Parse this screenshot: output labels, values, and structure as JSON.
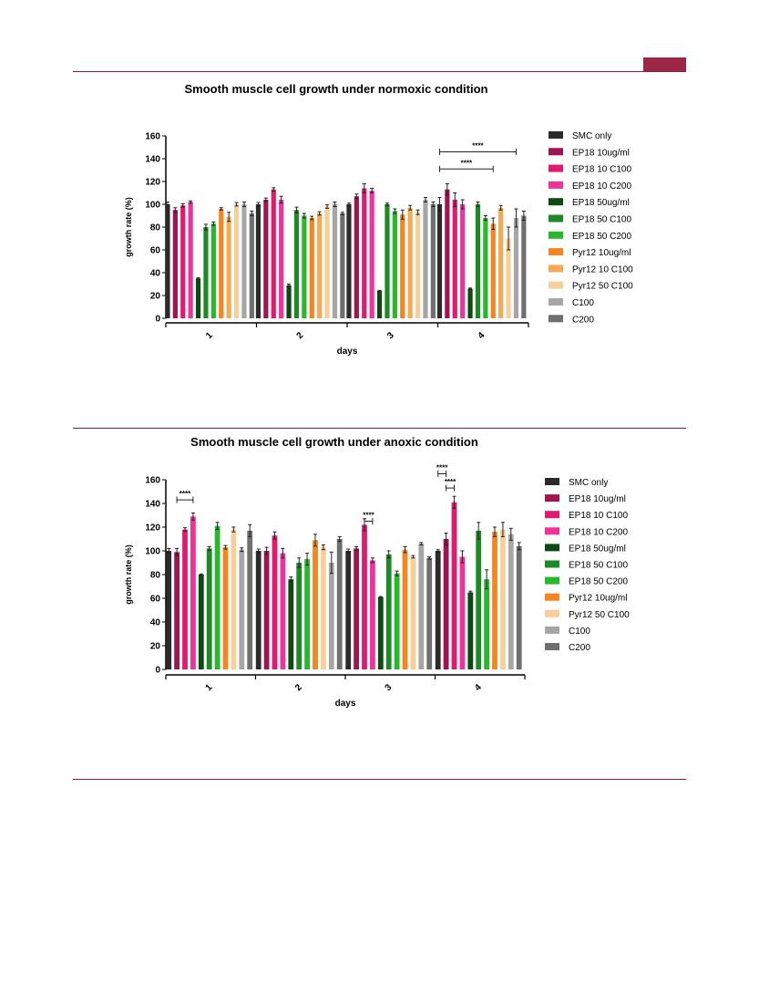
{
  "page": {
    "accent": "#9d2545"
  },
  "chart_data": [
    {
      "type": "bar",
      "title": "Smooth muscle cell growth under normoxic condition",
      "xlabel": "days",
      "ylabel": "growth rate (%)",
      "ylim": [
        0,
        160
      ],
      "yticks": [
        0,
        20,
        40,
        60,
        80,
        100,
        120,
        140,
        160
      ],
      "categories": [
        "1",
        "2",
        "3",
        "4"
      ],
      "legend_position": "right",
      "series": [
        {
          "name": "SMC only",
          "color": "#2b2b2b",
          "values": [
            100,
            100,
            100,
            100
          ],
          "errors": [
            2,
            1.5,
            1,
            6
          ]
        },
        {
          "name": "EP18 10ug/ml",
          "color": "#a0154d",
          "values": [
            95,
            104,
            107,
            113
          ],
          "errors": [
            2,
            1.5,
            2,
            5
          ]
        },
        {
          "name": "EP18 10 C100",
          "color": "#e01a6e",
          "values": [
            99,
            113,
            114,
            104
          ],
          "errors": [
            1.5,
            1.5,
            4,
            6
          ]
        },
        {
          "name": "EP18 10 C200",
          "color": "#f0329a",
          "values": [
            102,
            104,
            112,
            100
          ],
          "errors": [
            1,
            3,
            2,
            4
          ]
        },
        {
          "name": "EP18 50ug/ml",
          "color": "#0d4a12",
          "values": [
            35,
            29,
            24,
            26
          ],
          "errors": [
            0.5,
            1,
            0.5,
            0.5
          ]
        },
        {
          "name": "EP18 50 C100",
          "color": "#1d8a24",
          "values": [
            80,
            95,
            100,
            100
          ],
          "errors": [
            2.5,
            2.5,
            1,
            2
          ]
        },
        {
          "name": "EP18 50 C200",
          "color": "#28b82e",
          "values": [
            83,
            90,
            94,
            88
          ],
          "errors": [
            1.5,
            2,
            2,
            2
          ]
        },
        {
          "name": "Pyr12 10ug/ml",
          "color": "#f5861f",
          "values": [
            96,
            88,
            91,
            83
          ],
          "errors": [
            1,
            1.5,
            4,
            5
          ]
        },
        {
          "name": "Pyr12 10 C100",
          "color": "#f6aa55",
          "values": [
            89,
            92,
            97,
            97
          ],
          "errors": [
            4,
            1.5,
            2,
            2
          ]
        },
        {
          "name": "Pyr12 50 C100",
          "color": "#f7cf98",
          "values": [
            100,
            98,
            93,
            70
          ],
          "errors": [
            1.5,
            1.5,
            2,
            10
          ]
        },
        {
          "name": "C100",
          "color": "#a6a6a6",
          "values": [
            100,
            100,
            104,
            88
          ],
          "errors": [
            2,
            2,
            2,
            8
          ]
        },
        {
          "name": "C200",
          "color": "#6f6f6f",
          "values": [
            92,
            92,
            100,
            90
          ],
          "errors": [
            2,
            1,
            2,
            4
          ]
        }
      ],
      "annotations": [
        {
          "text": "****",
          "category": "4",
          "from": 0,
          "to": 10,
          "y": 146
        },
        {
          "text": "****",
          "category": "4",
          "from": 0,
          "to": 7,
          "y": 131
        }
      ]
    },
    {
      "type": "bar",
      "title": "Smooth muscle cell growth under anoxic condition",
      "xlabel": "days",
      "ylabel": "growth rate (%)",
      "ylim": [
        0,
        160
      ],
      "yticks": [
        0,
        20,
        40,
        60,
        80,
        100,
        120,
        140,
        160
      ],
      "categories": [
        "1",
        "2",
        "3",
        "4"
      ],
      "legend_position": "right",
      "series": [
        {
          "name": "SMC only",
          "color": "#2b2b2b",
          "values": [
            100,
            100,
            100,
            100
          ],
          "errors": [
            2,
            1.5,
            1.5,
            1
          ]
        },
        {
          "name": "EP18 10ug/ml",
          "color": "#a0154d",
          "values": [
            99,
            100,
            102,
            110
          ],
          "errors": [
            3,
            3,
            1.5,
            5
          ]
        },
        {
          "name": "EP18 10 C100",
          "color": "#e01a6e",
          "values": [
            118,
            113,
            122,
            141
          ],
          "errors": [
            1.5,
            3,
            5,
            5
          ]
        },
        {
          "name": "EP18 10 C200",
          "color": "#f0329a",
          "values": [
            129,
            98,
            92,
            95
          ],
          "errors": [
            3,
            4,
            2,
            5
          ]
        },
        {
          "name": "EP18 50ug/ml",
          "color": "#0d4a12",
          "values": [
            80,
            76,
            61,
            65
          ],
          "errors": [
            0.5,
            2,
            0.5,
            1
          ]
        },
        {
          "name": "EP18 50 C100",
          "color": "#1d8a24",
          "values": [
            102,
            90,
            97,
            117
          ],
          "errors": [
            1.5,
            4,
            3,
            7
          ]
        },
        {
          "name": "EP18 50 C200",
          "color": "#28b82e",
          "values": [
            121,
            93,
            81,
            76
          ],
          "errors": [
            3,
            5,
            2,
            8
          ]
        },
        {
          "name": "Pyr12 10ug/ml",
          "color": "#f5861f",
          "values": [
            103,
            109,
            101,
            116
          ],
          "errors": [
            1.5,
            5,
            2.5,
            4
          ]
        },
        {
          "name": "Pyr12 50 C100",
          "color": "#f7cf98",
          "values": [
            118,
            103,
            95,
            118
          ],
          "errors": [
            2,
            2,
            1,
            6
          ]
        },
        {
          "name": "C100",
          "color": "#a6a6a6",
          "values": [
            101,
            90,
            106,
            114
          ],
          "errors": [
            1.5,
            9,
            1,
            5
          ]
        },
        {
          "name": "C200",
          "color": "#6f6f6f",
          "values": [
            117,
            110,
            94,
            104
          ],
          "errors": [
            5,
            2,
            1,
            3
          ]
        }
      ],
      "annotations": [
        {
          "text": "****",
          "category": "1",
          "from": 1,
          "to": 3,
          "y": 143
        },
        {
          "text": "****",
          "category": "3",
          "from": 2,
          "to": 3,
          "y": 125
        },
        {
          "text": "****",
          "category": "4",
          "from": 0,
          "to": 1,
          "y": 165
        },
        {
          "text": "****",
          "category": "4",
          "from": 1,
          "to": 2,
          "y": 153
        }
      ]
    }
  ]
}
